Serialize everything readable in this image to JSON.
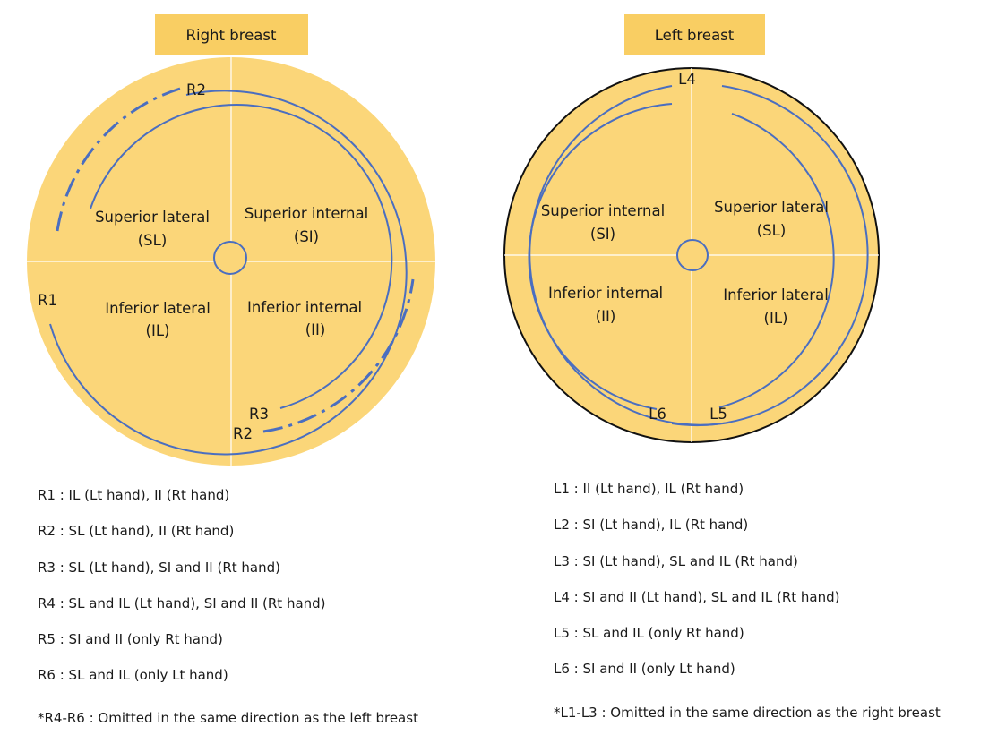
{
  "colors": {
    "breast_fill": "#fbd679",
    "title_fill": "#f9ce63",
    "arc_line": "#4a6ec0",
    "outline": "#111111",
    "divider": "#ffffff"
  },
  "right_breast": {
    "title": "Right breast",
    "quadrants": {
      "sl": [
        "Superior lateral",
        "(SL)"
      ],
      "si": [
        "Superior internal",
        "(SI)"
      ],
      "il": [
        "Inferior lateral",
        "(IL)"
      ],
      "ii": [
        "Inferior internal",
        "(II)"
      ]
    },
    "markers": {
      "r1": "R1",
      "r2_top": "R2",
      "r2_bottom": "R2",
      "r3": "R3"
    },
    "legend": [
      "R1 : IL (Lt hand), II (Rt hand)",
      "R2 : SL (Lt hand), II (Rt hand)",
      "R3 : SL (Lt hand), SI and II (Rt hand)",
      "R4 : SL and IL (Lt hand), SI and II (Rt hand)",
      "R5 : SI and II (only Rt hand)",
      "R6 : SL and IL (only Lt hand)"
    ],
    "note": "*R4-R6 : Omitted in the same direction as the left breast"
  },
  "left_breast": {
    "title": "Left breast",
    "quadrants": {
      "si": [
        "Superior internal",
        "(SI)"
      ],
      "sl": [
        "Superior lateral",
        "(SL)"
      ],
      "ii": [
        "Inferior internal",
        "(II)"
      ],
      "il": [
        "Inferior lateral",
        "(IL)"
      ]
    },
    "markers": {
      "l4": "L4",
      "l5": "L5",
      "l6": "L6"
    },
    "legend": [
      "L1 : II (Lt hand), IL (Rt hand)",
      "L2 : SI (Lt hand), IL (Rt hand)",
      "L3 : SI (Lt hand), SL and IL (Rt hand)",
      "L4 : SI and II (Lt hand), SL and IL (Rt hand)",
      "L5 : SL and IL (only Rt hand)",
      "L6 : SI and II (only Lt hand)"
    ],
    "note": "*L1-L3 : Omitted in the same direction as the right breast"
  }
}
